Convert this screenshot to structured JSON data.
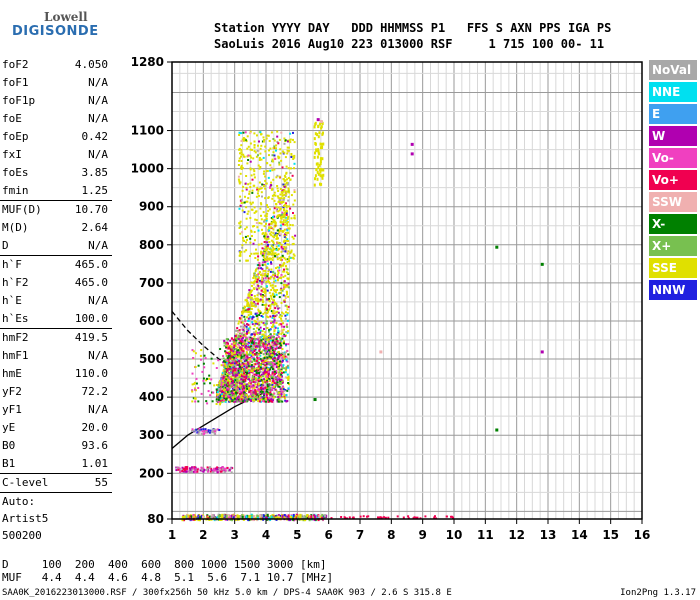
{
  "logo": {
    "line1": "Lowell",
    "line2": "DIGISONDE"
  },
  "header": {
    "line1": "Station YYYY DAY   DDD HHMMSS P1   FFS S AXN PPS IGA PS",
    "line2": "SaoLuis 2016 Aug10 223 013000 RSF     1 715 100 00- 11"
  },
  "params": [
    {
      "name": "foF2",
      "value": "4.050"
    },
    {
      "name": "foF1",
      "value": "N/A"
    },
    {
      "name": "foF1p",
      "value": "N/A"
    },
    {
      "name": "foE",
      "value": "N/A"
    },
    {
      "name": "foEp",
      "value": "0.42"
    },
    {
      "name": "fxI",
      "value": "N/A"
    },
    {
      "name": "foEs",
      "value": "3.85"
    },
    {
      "name": "fmin",
      "value": "1.25"
    },
    {
      "name": "MUF(D)",
      "value": "10.70",
      "sep": true
    },
    {
      "name": "M(D)",
      "value": "2.64"
    },
    {
      "name": "D",
      "value": "N/A"
    },
    {
      "name": "h`F",
      "value": "465.0",
      "sep": true
    },
    {
      "name": "h`F2",
      "value": "465.0"
    },
    {
      "name": "h`E",
      "value": "N/A"
    },
    {
      "name": "h`Es",
      "value": "100.0"
    },
    {
      "name": "hmF2",
      "value": "419.5",
      "sep": true
    },
    {
      "name": "hmF1",
      "value": "N/A"
    },
    {
      "name": "hmE",
      "value": "110.0"
    },
    {
      "name": "yF2",
      "value": "72.2"
    },
    {
      "name": "yF1",
      "value": "N/A"
    },
    {
      "name": "yE",
      "value": "20.0"
    },
    {
      "name": "B0",
      "value": "93.6"
    },
    {
      "name": "B1",
      "value": "1.01"
    },
    {
      "name": "C-level",
      "value": "55",
      "sep": true
    }
  ],
  "auto": {
    "l1": "Auto:",
    "l2": "Artist5",
    "l3": "500200"
  },
  "legend": [
    {
      "label": "NoVal",
      "color": "#a8a8a8"
    },
    {
      "label": "NNE",
      "color": "#00e0f0"
    },
    {
      "label": "E",
      "color": "#3fa0f0"
    },
    {
      "label": "W",
      "color": "#b000b0"
    },
    {
      "label": "Vo-",
      "color": "#f040c0"
    },
    {
      "label": "Vo+",
      "color": "#f00050"
    },
    {
      "label": "SSW",
      "color": "#f0b0b0"
    },
    {
      "label": "X-",
      "color": "#008000"
    },
    {
      "label": "X+",
      "color": "#78c050"
    },
    {
      "label": "SSE",
      "color": "#e0e000"
    },
    {
      "label": "NNW",
      "color": "#2020e0"
    }
  ],
  "muf_table": {
    "line1": "D     100  200  400  600  800 1000 1500 3000 [km]",
    "line2": "MUF   4.4  4.4  4.6  4.8  5.1  5.6  7.1 10.7 [MHz]"
  },
  "footer": "SAA0K_2016223013000.RSF / 300fx256h 50 kHz 5.0 km / DPS-4 SAA0K 903 / 2.6 S 315.8 E",
  "version": "Ion2Png 1.3.17",
  "chart_data": {
    "type": "scatter",
    "title": "",
    "xlabel": "",
    "ylabel": "",
    "xlim": [
      1,
      16
    ],
    "ylim": [
      80,
      1280
    ],
    "x_ticks": [
      1,
      2,
      3,
      4,
      5,
      6,
      7,
      8,
      9,
      10,
      11,
      12,
      13,
      14,
      15,
      16
    ],
    "y_ticks": [
      80,
      200,
      300,
      400,
      500,
      600,
      700,
      800,
      900,
      1000,
      1100,
      1280
    ],
    "grid": true,
    "series": [
      {
        "name": "X-",
        "color": "#008000",
        "points": [
          [
            11.35,
            795
          ],
          [
            11.35,
            315
          ],
          [
            12.8,
            750
          ],
          [
            5.55,
            395
          ]
        ]
      },
      {
        "name": "W",
        "color": "#b000b0",
        "points": [
          [
            8.65,
            1065
          ],
          [
            8.65,
            1040
          ],
          [
            12.8,
            520
          ],
          [
            5.65,
            1130
          ]
        ]
      },
      {
        "name": "SSW",
        "color": "#f0b0b0",
        "points": [
          [
            7.65,
            520
          ],
          [
            5.75,
            1125
          ]
        ]
      }
    ],
    "model_curves": [
      {
        "name": "profile_solid",
        "points": [
          [
            1.0,
            265
          ],
          [
            1.5,
            300
          ],
          [
            2.0,
            325
          ],
          [
            2.5,
            350
          ],
          [
            3.0,
            375
          ],
          [
            3.5,
            395
          ],
          [
            3.9,
            410
          ],
          [
            4.05,
            415
          ]
        ]
      },
      {
        "name": "profile_dashed",
        "points": [
          [
            1.0,
            625
          ],
          [
            1.5,
            575
          ],
          [
            2.0,
            535
          ],
          [
            2.5,
            500
          ],
          [
            3.0,
            478
          ],
          [
            3.5,
            460
          ],
          [
            3.9,
            440
          ]
        ]
      }
    ]
  }
}
